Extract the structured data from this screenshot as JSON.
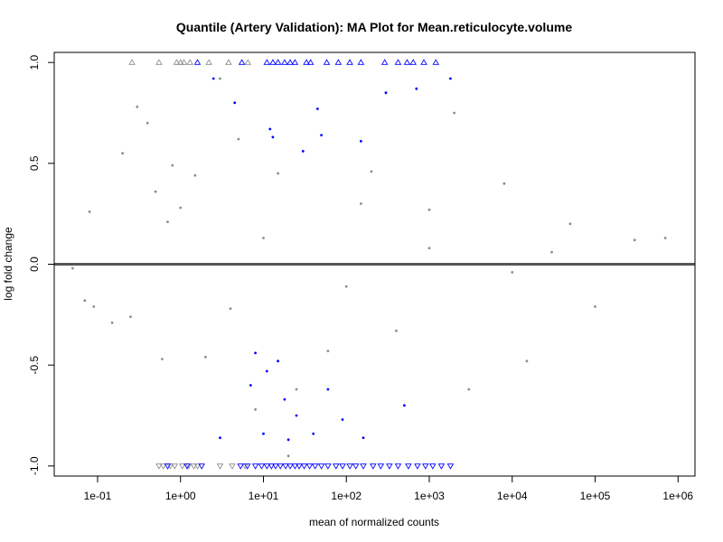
{
  "chart_data": {
    "type": "scatter",
    "title": "Quantile (Artery Validation): MA Plot for Mean.reticulocyte.volume",
    "xlabel": "mean of normalized counts",
    "ylabel": "log fold change",
    "x_scale": "log10",
    "xlim": [
      0.03,
      1600000
    ],
    "ylim": [
      -1.05,
      1.05
    ],
    "x_ticks": [
      {
        "value": 0.1,
        "label": "1e-01"
      },
      {
        "value": 1,
        "label": "1e+00"
      },
      {
        "value": 10,
        "label": "1e+01"
      },
      {
        "value": 100,
        "label": "1e+02"
      },
      {
        "value": 1000,
        "label": "1e+03"
      },
      {
        "value": 10000,
        "label": "1e+04"
      },
      {
        "value": 100000,
        "label": "1e+05"
      },
      {
        "value": 1000000,
        "label": "1e+06"
      }
    ],
    "y_ticks": [
      {
        "value": -1.0,
        "label": "-1.0"
      },
      {
        "value": -0.5,
        "label": "-0.5"
      },
      {
        "value": 0.0,
        "label": "0.0"
      },
      {
        "value": 0.5,
        "label": "0.5"
      },
      {
        "value": 1.0,
        "label": "1.0"
      }
    ],
    "reference_line": {
      "y": 0,
      "color": "#555555"
    },
    "colors": {
      "non_significant": "#8c8c8c",
      "significant": "#0000ff",
      "reference_line": "#555555"
    },
    "series": [
      {
        "category": "non-significant",
        "color": "#8c8c8c",
        "marker": "dot",
        "points": [
          [
            0.05,
            -0.02
          ],
          [
            0.07,
            -0.18
          ],
          [
            0.08,
            0.26
          ],
          [
            0.09,
            -0.21
          ],
          [
            0.15,
            -0.29
          ],
          [
            0.2,
            0.55
          ],
          [
            0.25,
            -0.26
          ],
          [
            0.3,
            0.78
          ],
          [
            0.4,
            0.7
          ],
          [
            0.5,
            0.36
          ],
          [
            0.6,
            -0.47
          ],
          [
            0.8,
            0.49
          ],
          [
            1.0,
            0.28
          ],
          [
            1.5,
            0.44
          ],
          [
            2.0,
            -0.46
          ],
          [
            3.0,
            0.92
          ],
          [
            5.0,
            0.62
          ],
          [
            8.0,
            -0.72
          ],
          [
            15.0,
            0.45
          ],
          [
            25.0,
            -0.62
          ],
          [
            60.0,
            -0.43
          ],
          [
            150.0,
            0.3
          ],
          [
            400.0,
            -0.33
          ],
          [
            1000.0,
            0.27
          ],
          [
            2000.0,
            0.75
          ],
          [
            3000.0,
            -0.62
          ],
          [
            8000.0,
            0.4
          ],
          [
            15000.0,
            -0.48
          ],
          [
            50000.0,
            0.2
          ],
          [
            100000.0,
            -0.21
          ],
          [
            300000.0,
            0.12
          ],
          [
            700000.0,
            0.13
          ],
          [
            10.0,
            0.13
          ],
          [
            100.0,
            -0.11
          ],
          [
            1000.0,
            0.08
          ],
          [
            10000.0,
            -0.04
          ],
          [
            30000.0,
            0.06
          ],
          [
            200.0,
            0.46
          ],
          [
            20.0,
            -0.95
          ],
          [
            0.7,
            0.21
          ],
          [
            4.0,
            -0.22
          ]
        ]
      },
      {
        "category": "significant",
        "color": "#0000ff",
        "marker": "dot",
        "points": [
          [
            2.5,
            0.92
          ],
          [
            4.5,
            0.8
          ],
          [
            13.0,
            0.63
          ],
          [
            45.0,
            0.77
          ],
          [
            150.0,
            0.61
          ],
          [
            300.0,
            0.85
          ],
          [
            700.0,
            0.87
          ],
          [
            1800.0,
            0.92
          ],
          [
            50.0,
            0.64
          ],
          [
            30.0,
            0.56
          ],
          [
            12.0,
            0.67
          ],
          [
            3.0,
            -0.86
          ],
          [
            10.0,
            -0.84
          ],
          [
            20.0,
            -0.87
          ],
          [
            40.0,
            -0.84
          ],
          [
            90.0,
            -0.77
          ],
          [
            160.0,
            -0.86
          ],
          [
            500.0,
            -0.7
          ],
          [
            7.0,
            -0.6
          ],
          [
            15.0,
            -0.48
          ],
          [
            25.0,
            -0.75
          ],
          [
            60.0,
            -0.62
          ],
          [
            11.0,
            -0.53
          ],
          [
            18.0,
            -0.67
          ],
          [
            8.0,
            -0.44
          ]
        ]
      },
      {
        "category": "clipped-low-count",
        "color": "#8c8c8c",
        "marker": "triangle-up",
        "y": 1.0,
        "x": [
          0.26,
          0.55,
          0.9,
          1.0,
          1.1,
          1.3,
          2.2,
          3.8,
          6.5
        ]
      },
      {
        "category": "clipped-significant",
        "color": "#0000ff",
        "marker": "triangle-up",
        "y": 1.0,
        "x": [
          1.6,
          5.5,
          11.0,
          13.0,
          15.0,
          18.0,
          21.0,
          24.0,
          33.0,
          37.0,
          58.0,
          80.0,
          110.0,
          150.0,
          290.0,
          420.0,
          540.0,
          640.0,
          860.0,
          1200.0
        ]
      },
      {
        "category": "clipped-low-count",
        "color": "#8c8c8c",
        "marker": "triangle-down",
        "y": -1.0,
        "x": [
          0.55,
          0.62,
          0.75,
          0.85,
          1.05,
          1.25,
          1.45,
          1.6,
          3.0,
          4.2,
          6.0
        ]
      },
      {
        "category": "clipped-significant",
        "color": "#0000ff",
        "marker": "triangle-down",
        "y": -1.0,
        "x": [
          0.7,
          1.2,
          1.8,
          5.3,
          6.4,
          8.0,
          9.5,
          11.0,
          12.5,
          14.0,
          16.0,
          18.5,
          21.0,
          24.0,
          27.0,
          31.0,
          36.0,
          42.0,
          50.0,
          60.0,
          75.0,
          90.0,
          110.0,
          130.0,
          160.0,
          210.0,
          260.0,
          330.0,
          420.0,
          560.0,
          720.0,
          900.0,
          1100.0,
          1400.0,
          1800.0
        ]
      }
    ]
  }
}
